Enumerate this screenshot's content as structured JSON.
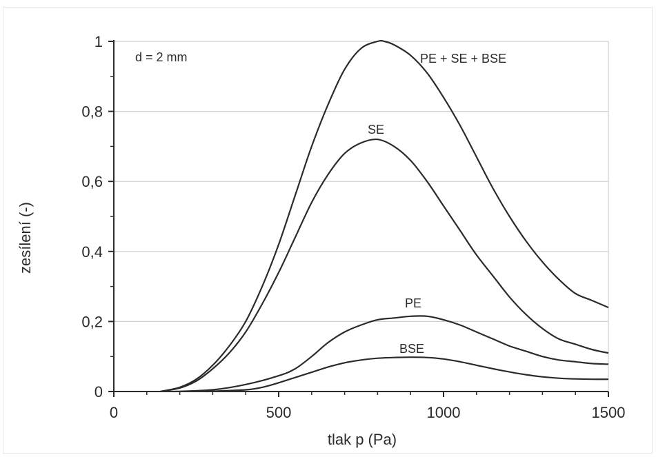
{
  "chart_data": {
    "type": "line",
    "annotation": "d = 2 mm",
    "xlabel": "tlak p (Pa)",
    "ylabel": "zesílení (-)",
    "xlim": [
      0,
      1500
    ],
    "ylim": [
      0,
      1
    ],
    "x_ticks": [
      0,
      500,
      1000,
      1500
    ],
    "x_tick_labels": [
      "0",
      "500",
      "1000",
      "1500"
    ],
    "y_ticks": [
      0,
      0.2,
      0.4,
      0.6,
      0.8,
      1
    ],
    "y_tick_labels": [
      "0",
      "0,2",
      "0,4",
      "0,6",
      "0,8",
      "1"
    ],
    "grid": "horizontal",
    "line_color": "#2b2b2b",
    "series": [
      {
        "name": "PE + SE + BSE",
        "points": [
          [
            140,
            0
          ],
          [
            200,
            0.012
          ],
          [
            250,
            0.035
          ],
          [
            300,
            0.075
          ],
          [
            350,
            0.13
          ],
          [
            400,
            0.2
          ],
          [
            450,
            0.3
          ],
          [
            500,
            0.42
          ],
          [
            550,
            0.56
          ],
          [
            600,
            0.7
          ],
          [
            650,
            0.82
          ],
          [
            700,
            0.92
          ],
          [
            750,
            0.98
          ],
          [
            800,
            1.0
          ],
          [
            820,
            1.0
          ],
          [
            850,
            0.99
          ],
          [
            900,
            0.96
          ],
          [
            950,
            0.91
          ],
          [
            1000,
            0.84
          ],
          [
            1050,
            0.76
          ],
          [
            1100,
            0.67
          ],
          [
            1150,
            0.58
          ],
          [
            1200,
            0.5
          ],
          [
            1250,
            0.43
          ],
          [
            1300,
            0.37
          ],
          [
            1350,
            0.32
          ],
          [
            1400,
            0.28
          ],
          [
            1450,
            0.26
          ],
          [
            1500,
            0.24
          ]
        ]
      },
      {
        "name": "SE",
        "points": [
          [
            140,
            0
          ],
          [
            200,
            0.01
          ],
          [
            250,
            0.03
          ],
          [
            300,
            0.065
          ],
          [
            350,
            0.11
          ],
          [
            400,
            0.17
          ],
          [
            450,
            0.25
          ],
          [
            500,
            0.34
          ],
          [
            550,
            0.44
          ],
          [
            600,
            0.54
          ],
          [
            650,
            0.62
          ],
          [
            700,
            0.68
          ],
          [
            750,
            0.71
          ],
          [
            800,
            0.72
          ],
          [
            850,
            0.7
          ],
          [
            900,
            0.66
          ],
          [
            950,
            0.6
          ],
          [
            1000,
            0.53
          ],
          [
            1050,
            0.46
          ],
          [
            1100,
            0.39
          ],
          [
            1150,
            0.33
          ],
          [
            1200,
            0.27
          ],
          [
            1250,
            0.22
          ],
          [
            1300,
            0.18
          ],
          [
            1350,
            0.15
          ],
          [
            1400,
            0.135
          ],
          [
            1450,
            0.12
          ],
          [
            1500,
            0.11
          ]
        ]
      },
      {
        "name": "PE",
        "points": [
          [
            180,
            0
          ],
          [
            300,
            0.005
          ],
          [
            400,
            0.02
          ],
          [
            500,
            0.045
          ],
          [
            550,
            0.065
          ],
          [
            600,
            0.1
          ],
          [
            650,
            0.14
          ],
          [
            700,
            0.17
          ],
          [
            750,
            0.19
          ],
          [
            800,
            0.205
          ],
          [
            850,
            0.21
          ],
          [
            900,
            0.215
          ],
          [
            950,
            0.215
          ],
          [
            1000,
            0.205
          ],
          [
            1050,
            0.19
          ],
          [
            1100,
            0.17
          ],
          [
            1150,
            0.15
          ],
          [
            1200,
            0.13
          ],
          [
            1250,
            0.115
          ],
          [
            1300,
            0.1
          ],
          [
            1350,
            0.09
          ],
          [
            1400,
            0.085
          ],
          [
            1450,
            0.08
          ],
          [
            1500,
            0.078
          ]
        ]
      },
      {
        "name": "BSE",
        "points": [
          [
            280,
            0
          ],
          [
            400,
            0.005
          ],
          [
            450,
            0.012
          ],
          [
            500,
            0.025
          ],
          [
            550,
            0.04
          ],
          [
            600,
            0.055
          ],
          [
            650,
            0.07
          ],
          [
            700,
            0.082
          ],
          [
            750,
            0.09
          ],
          [
            800,
            0.095
          ],
          [
            850,
            0.097
          ],
          [
            900,
            0.098
          ],
          [
            950,
            0.097
          ],
          [
            1000,
            0.093
          ],
          [
            1050,
            0.085
          ],
          [
            1100,
            0.075
          ],
          [
            1150,
            0.065
          ],
          [
            1200,
            0.056
          ],
          [
            1250,
            0.048
          ],
          [
            1300,
            0.042
          ],
          [
            1350,
            0.038
          ],
          [
            1400,
            0.036
          ],
          [
            1450,
            0.035
          ],
          [
            1500,
            0.035
          ]
        ]
      }
    ]
  }
}
